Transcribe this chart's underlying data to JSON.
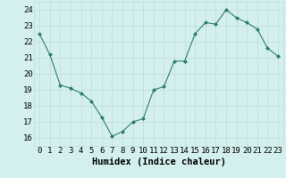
{
  "x": [
    0,
    1,
    2,
    3,
    4,
    5,
    6,
    7,
    8,
    9,
    10,
    11,
    12,
    13,
    14,
    15,
    16,
    17,
    18,
    19,
    20,
    21,
    22,
    23
  ],
  "y": [
    22.5,
    21.2,
    19.3,
    19.1,
    18.8,
    18.3,
    17.3,
    16.1,
    16.4,
    17.0,
    17.2,
    19.0,
    19.2,
    20.8,
    20.8,
    22.5,
    23.2,
    23.1,
    24.0,
    23.5,
    23.2,
    22.8,
    21.6,
    21.1
  ],
  "line_color": "#2e7d6e",
  "marker": "D",
  "marker_size": 2,
  "bg_color": "#d4f0ee",
  "grid_color": "#c0ddd9",
  "xlabel": "Humidex (Indice chaleur)",
  "xlim": [
    -0.5,
    23.5
  ],
  "ylim": [
    15.5,
    24.5
  ],
  "yticks": [
    16,
    17,
    18,
    19,
    20,
    21,
    22,
    23,
    24
  ],
  "xticks": [
    0,
    1,
    2,
    3,
    4,
    5,
    6,
    7,
    8,
    9,
    10,
    11,
    12,
    13,
    14,
    15,
    16,
    17,
    18,
    19,
    20,
    21,
    22,
    23
  ],
  "xlabel_fontsize": 7.5,
  "tick_fontsize": 6.5
}
